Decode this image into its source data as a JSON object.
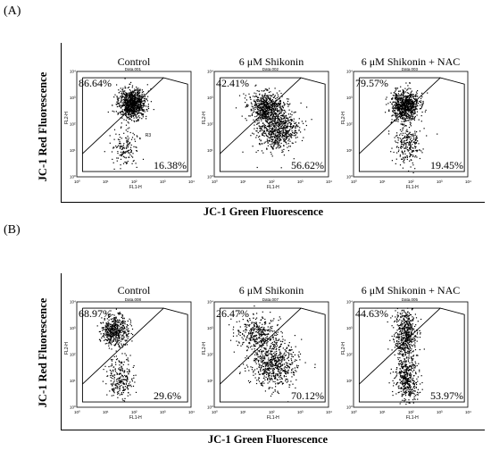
{
  "figure": {
    "panel_A_label": "(A)",
    "panel_B_label": "(B)",
    "ylabel": "JC-1 Red Fluorescence",
    "xlabel": "JC-1 Green Fluorescence"
  },
  "chart_data": [
    {
      "type": "scatter",
      "panel": "(A)",
      "xlabel": "JC-1 Green Fluorescence",
      "ylabel": "JC-1 Red Fluorescence",
      "subplots": [
        {
          "title": "Control",
          "file": "Data.001",
          "x_axis": "FL1-H",
          "y_axis": "FL2-H",
          "upper_left_pct": "86.64%",
          "lower_right_pct": "16.38%",
          "gate": "R3",
          "clusters": [
            {
              "x": 0.48,
              "y": 0.3,
              "sx": 0.06,
              "sy": 0.07,
              "n": 900
            },
            {
              "x": 0.42,
              "y": 0.72,
              "sx": 0.06,
              "sy": 0.09,
              "n": 150
            }
          ]
        },
        {
          "title": "6 μM Shikonin",
          "file": "Data.002",
          "x_axis": "FL1-H",
          "y_axis": "FL2-H",
          "upper_left_pct": "42.41%",
          "lower_right_pct": "56.62%",
          "clusters": [
            {
              "x": 0.45,
              "y": 0.33,
              "sx": 0.07,
              "sy": 0.07,
              "n": 600
            },
            {
              "x": 0.55,
              "y": 0.55,
              "sx": 0.09,
              "sy": 0.1,
              "n": 700
            }
          ]
        },
        {
          "title": "6 μM Shikonin + NAC",
          "file": "Data.003",
          "x_axis": "FL1-H",
          "y_axis": "FL2-H",
          "upper_left_pct": "79.57%",
          "lower_right_pct": "19.45%",
          "clusters": [
            {
              "x": 0.45,
              "y": 0.32,
              "sx": 0.06,
              "sy": 0.07,
              "n": 800
            },
            {
              "x": 0.47,
              "y": 0.68,
              "sx": 0.06,
              "sy": 0.1,
              "n": 250
            }
          ]
        }
      ],
      "axis_ticks": [
        "10⁰",
        "10¹",
        "10²",
        "10³",
        "10⁴"
      ]
    },
    {
      "type": "scatter",
      "panel": "(B)",
      "xlabel": "JC-1 Green Fluorescence",
      "ylabel": "JC-1 Red Fluorescence",
      "subplots": [
        {
          "title": "Control",
          "file": "Data.008",
          "x_axis": "FL1-H",
          "y_axis": "FL2-H",
          "upper_left_pct": "68.97%",
          "lower_right_pct": "29.6%",
          "clusters": [
            {
              "x": 0.33,
              "y": 0.27,
              "sx": 0.06,
              "sy": 0.07,
              "n": 500
            },
            {
              "x": 0.37,
              "y": 0.72,
              "sx": 0.06,
              "sy": 0.1,
              "n": 250
            }
          ]
        },
        {
          "title": "6 μM Shikonin",
          "file": "Data.007",
          "x_axis": "FL1-H",
          "y_axis": "FL2-H",
          "upper_left_pct": "26.47%",
          "lower_right_pct": "70.12%",
          "clusters": [
            {
              "x": 0.38,
              "y": 0.3,
              "sx": 0.1,
              "sy": 0.08,
              "n": 350
            },
            {
              "x": 0.52,
              "y": 0.58,
              "sx": 0.1,
              "sy": 0.11,
              "n": 650
            }
          ]
        },
        {
          "title": "6 μM Shikonin + NAC",
          "file": "Data.005",
          "x_axis": "FL1-H",
          "y_axis": "FL2-H",
          "upper_left_pct": "44.63%",
          "lower_right_pct": "53.97%",
          "clusters": [
            {
              "x": 0.45,
              "y": 0.3,
              "sx": 0.05,
              "sy": 0.12,
              "n": 500
            },
            {
              "x": 0.46,
              "y": 0.72,
              "sx": 0.05,
              "sy": 0.12,
              "n": 450
            }
          ]
        }
      ],
      "axis_ticks": [
        "10⁰",
        "10¹",
        "10²",
        "10³",
        "10⁴"
      ]
    }
  ]
}
